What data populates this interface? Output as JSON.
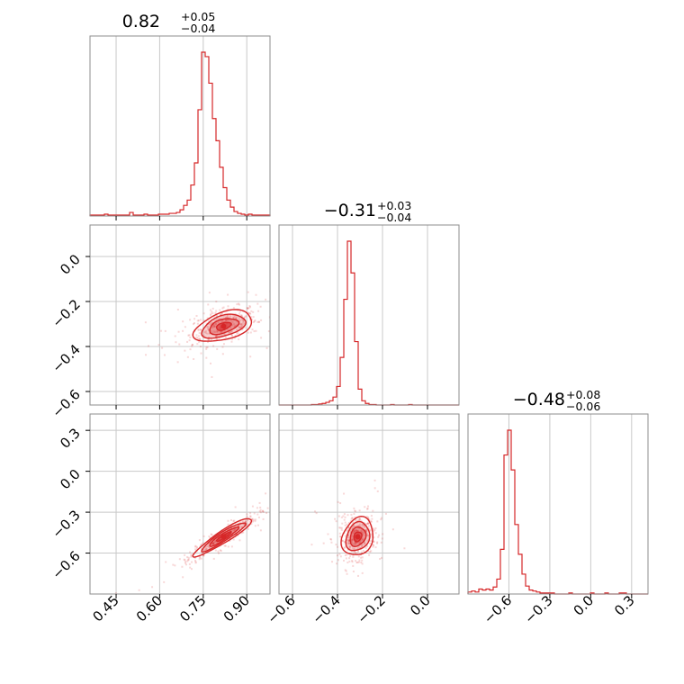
{
  "titles": {
    "p1": {
      "value": "0.82",
      "plus": "+0.05",
      "minus": "−0.04"
    },
    "p2": {
      "value": "−0.31",
      "plus": "+0.03",
      "minus": "−0.04"
    },
    "p3": {
      "value": "−0.48",
      "plus": "+0.08",
      "minus": "−0.06"
    }
  },
  "colors": {
    "accent": "#d62728",
    "grid": "#c8c8c8",
    "frame": "#8c8c8c"
  },
  "chart_data": {
    "type": "corner",
    "parameter_ranges": {
      "p1": [
        0.36,
        0.98
      ],
      "p2": [
        -0.66,
        0.14
      ],
      "p3": [
        -0.9,
        0.42
      ]
    },
    "ticks": {
      "p1": {
        "values": [
          0.45,
          0.6,
          0.75,
          0.9
        ],
        "labels": [
          "0.45",
          "0.60",
          "0.75",
          "0.90"
        ]
      },
      "p2": {
        "values": [
          -0.6,
          -0.4,
          -0.2,
          0.0
        ],
        "labels": [
          "−0.6",
          "−0.4",
          "−0.2",
          "0.0"
        ]
      },
      "p3": {
        "values": [
          -0.6,
          -0.3,
          0.0,
          0.3
        ],
        "labels": [
          "−0.6",
          "−0.3",
          "0.0",
          "0.3"
        ]
      }
    },
    "p2_row_ticks": {
      "values": [
        0.0,
        -0.2,
        -0.4,
        -0.6
      ],
      "labels": [
        "0.0",
        "−0.2",
        "−0.4",
        "−0.6"
      ]
    },
    "p3_row_ticks": {
      "values": [
        0.3,
        0.0,
        -0.3,
        -0.6
      ],
      "labels": [
        "0.3",
        "0.0",
        "−0.3",
        "−0.6"
      ]
    },
    "histograms": {
      "p1": {
        "edges_start": 0.36,
        "bin_width": 0.0124,
        "counts": [
          1,
          1,
          1,
          1,
          2,
          1,
          1,
          1,
          1,
          1,
          1,
          4,
          1,
          1,
          1,
          2,
          1,
          1,
          1,
          2,
          2,
          2,
          3,
          3,
          4,
          7,
          12,
          18,
          35,
          60,
          120,
          185,
          180,
          150,
          110,
          85,
          55,
          32,
          18,
          10,
          5,
          3,
          2,
          1,
          2,
          1,
          1,
          1,
          1,
          1
        ]
      },
      "p2": {
        "edges_start": -0.66,
        "bin_width": 0.016,
        "counts": [
          0,
          0,
          0,
          0,
          0,
          0,
          0,
          0,
          0,
          1,
          1,
          2,
          3,
          5,
          8,
          15,
          35,
          90,
          200,
          310,
          250,
          120,
          30,
          8,
          3,
          1,
          1,
          0,
          0,
          0,
          0,
          1,
          0,
          0,
          0,
          0,
          1,
          0,
          0,
          0,
          0,
          0,
          0,
          0,
          0,
          0,
          0,
          0,
          0,
          0
        ]
      },
      "p3": {
        "edges_start": -0.9,
        "bin_width": 0.0264,
        "counts": [
          2,
          3,
          2,
          5,
          4,
          5,
          4,
          7,
          15,
          45,
          140,
          165,
          125,
          70,
          40,
          20,
          8,
          4,
          3,
          2,
          1,
          1,
          1,
          1,
          0,
          0,
          0,
          0,
          1,
          0,
          0,
          0,
          0,
          0,
          1,
          0,
          0,
          0,
          1,
          0,
          0,
          0,
          1,
          1,
          0,
          0,
          0,
          0,
          0,
          0
        ]
      }
    },
    "joint": {
      "p1_p2": {
        "mean": [
          0.82,
          -0.31
        ],
        "sigma": [
          0.05,
          0.035
        ],
        "corr": 0.45
      },
      "p1_p3": {
        "mean": [
          0.82,
          -0.48
        ],
        "sigma": [
          0.05,
          0.07
        ],
        "corr": 0.93
      },
      "p2_p3": {
        "mean": [
          -0.31,
          -0.48
        ],
        "sigma": [
          0.035,
          0.07
        ],
        "corr": 0.2
      }
    },
    "contour_levels_sigma": [
      0.5,
      1.0,
      1.5,
      2.0
    ]
  }
}
